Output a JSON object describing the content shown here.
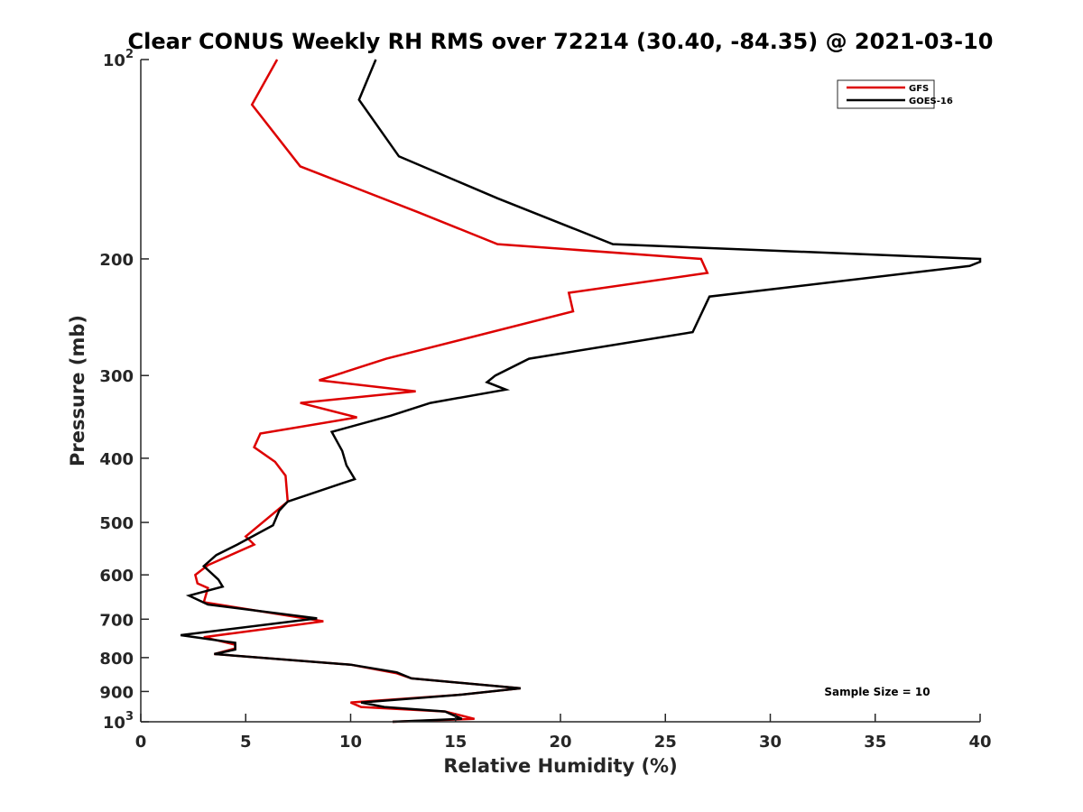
{
  "chart_data": {
    "type": "line",
    "title": "Clear CONUS Weekly RH RMS over 72214 (30.40, -84.35) @ 2021-03-10",
    "xlabel": "Relative Humidity (%)",
    "ylabel": "Pressure (mb)",
    "xlim": [
      0,
      40
    ],
    "ylim": [
      100,
      1000
    ],
    "yscale": "log",
    "y_reversed": true,
    "grid": false,
    "legend_position": "top-right",
    "x_ticks": [
      "0",
      "5",
      "10",
      "15",
      "20",
      "25",
      "30",
      "35",
      "40"
    ],
    "y_ticks": [
      {
        "value": 100,
        "base": "10",
        "exp": "2"
      },
      {
        "value": 200,
        "label": "200"
      },
      {
        "value": 300,
        "label": "300"
      },
      {
        "value": 400,
        "label": "400"
      },
      {
        "value": 500,
        "label": "500"
      },
      {
        "value": 600,
        "label": "600"
      },
      {
        "value": 700,
        "label": "700"
      },
      {
        "value": 800,
        "label": "800"
      },
      {
        "value": 900,
        "label": "900"
      },
      {
        "value": 1000,
        "base": "10",
        "exp": "3"
      }
    ],
    "annotation": "Sample Size = 10",
    "series": [
      {
        "name": "GFS",
        "color": "#dd0000",
        "x": [
          6.5,
          5.3,
          7.6,
          13.2,
          17.0,
          26.7,
          27.0,
          20.4,
          20.6,
          11.7,
          8.5,
          13.1,
          7.6,
          10.3,
          5.7,
          5.4,
          6.4,
          6.9,
          7.0,
          5.0,
          5.4,
          3.2,
          2.6,
          2.7,
          3.2,
          3.0,
          8.7,
          3.0,
          4.5,
          4.5,
          3.5,
          10.0,
          12.2,
          12.9,
          18.1,
          15.3,
          10.0,
          10.5,
          14.5,
          15.9,
          12.0
        ],
        "y": [
          100,
          117,
          145,
          170,
          190,
          200,
          210,
          225,
          240,
          283,
          305,
          317,
          330,
          347,
          367,
          385,
          405,
          425,
          465,
          525,
          540,
          580,
          600,
          618,
          628,
          660,
          705,
          745,
          765,
          775,
          790,
          820,
          845,
          860,
          890,
          910,
          935,
          950,
          965,
          990,
          1000
        ]
      },
      {
        "name": "GOES-16",
        "color": "#000000",
        "x": [
          11.2,
          10.4,
          12.3,
          17.0,
          22.5,
          40.0,
          40.0,
          39.5,
          27.1,
          26.3,
          18.5,
          16.9,
          16.5,
          17.4,
          13.8,
          11.9,
          9.1,
          9.6,
          9.8,
          10.2,
          7.0,
          6.6,
          6.3,
          4.6,
          3.6,
          3.0,
          3.7,
          3.9,
          2.3,
          3.2,
          8.4,
          1.9,
          4.5,
          4.5,
          3.5,
          10.0,
          12.2,
          12.9,
          18.1,
          15.3,
          10.5,
          11.6,
          14.5,
          15.3,
          12.0
        ],
        "y": [
          100,
          115,
          140,
          162,
          190,
          200,
          202,
          205,
          228,
          258,
          283,
          300,
          307,
          315,
          330,
          345,
          365,
          390,
          410,
          430,
          465,
          480,
          505,
          540,
          560,
          582,
          610,
          625,
          645,
          665,
          698,
          740,
          760,
          778,
          790,
          820,
          842,
          860,
          890,
          910,
          935,
          950,
          965,
          990,
          1000
        ]
      }
    ]
  }
}
